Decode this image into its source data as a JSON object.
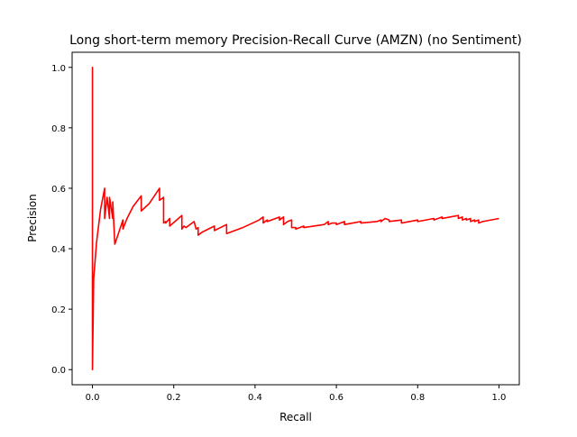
{
  "chart_data": {
    "type": "line",
    "title": "Long short-term memory Precision-Recall Curve (AMZN) (no Sentiment)",
    "xlabel": "Recall",
    "ylabel": "Precision",
    "xlim": [
      -0.05,
      1.05
    ],
    "ylim": [
      -0.05,
      1.05
    ],
    "xticks": [
      0.0,
      0.2,
      0.4,
      0.6,
      0.8,
      1.0
    ],
    "xtick_labels": [
      "0.0",
      "0.2",
      "0.4",
      "0.6",
      "0.8",
      "1.0"
    ],
    "yticks": [
      0.0,
      0.2,
      0.4,
      0.6,
      0.8,
      1.0
    ],
    "ytick_labels": [
      "0.0",
      "0.2",
      "0.4",
      "0.6",
      "0.8",
      "1.0"
    ],
    "grid": false,
    "legend": "none",
    "series": [
      {
        "color": "#ff0000",
        "x": [
          0.0,
          0.0,
          0.0,
          0.003,
          0.01,
          0.02,
          0.03,
          0.03,
          0.036,
          0.042,
          0.042,
          0.05,
          0.05,
          0.055,
          0.065,
          0.075,
          0.075,
          0.085,
          0.1,
          0.12,
          0.12,
          0.14,
          0.165,
          0.165,
          0.175,
          0.175,
          0.18,
          0.18,
          0.19,
          0.19,
          0.22,
          0.22,
          0.225,
          0.23,
          0.24,
          0.25,
          0.255,
          0.26,
          0.26,
          0.27,
          0.3,
          0.3,
          0.33,
          0.33,
          0.37,
          0.41,
          0.42,
          0.42,
          0.43,
          0.43,
          0.46,
          0.46,
          0.47,
          0.47,
          0.48,
          0.49,
          0.49,
          0.5,
          0.5,
          0.52,
          0.52,
          0.57,
          0.58,
          0.58,
          0.59,
          0.6,
          0.6,
          0.62,
          0.62,
          0.64,
          0.64,
          0.66,
          0.66,
          0.7,
          0.71,
          0.71,
          0.72,
          0.73,
          0.73,
          0.76,
          0.76,
          0.8,
          0.8,
          0.84,
          0.84,
          0.86,
          0.86,
          0.88,
          0.88,
          0.9,
          0.9,
          0.91,
          0.91,
          0.92,
          0.92,
          0.93,
          0.93,
          0.94,
          0.94,
          0.95,
          0.95,
          0.96,
          0.96,
          1.0
        ],
        "y": [
          0.0,
          1.0,
          0.0,
          0.3,
          0.42,
          0.53,
          0.6,
          0.5,
          0.57,
          0.5,
          0.57,
          0.5,
          0.555,
          0.415,
          0.455,
          0.495,
          0.465,
          0.5,
          0.54,
          0.575,
          0.525,
          0.55,
          0.6,
          0.56,
          0.57,
          0.485,
          0.49,
          0.485,
          0.5,
          0.475,
          0.51,
          0.465,
          0.475,
          0.47,
          0.48,
          0.49,
          0.465,
          0.47,
          0.445,
          0.455,
          0.475,
          0.46,
          0.48,
          0.45,
          0.47,
          0.495,
          0.505,
          0.485,
          0.495,
          0.49,
          0.505,
          0.495,
          0.505,
          0.48,
          0.49,
          0.495,
          0.47,
          0.47,
          0.465,
          0.475,
          0.47,
          0.48,
          0.49,
          0.48,
          0.485,
          0.485,
          0.48,
          0.49,
          0.48,
          0.485,
          0.485,
          0.49,
          0.485,
          0.49,
          0.495,
          0.49,
          0.5,
          0.495,
          0.49,
          0.495,
          0.485,
          0.495,
          0.49,
          0.5,
          0.495,
          0.505,
          0.5,
          0.505,
          0.505,
          0.51,
          0.5,
          0.505,
          0.495,
          0.5,
          0.495,
          0.5,
          0.49,
          0.495,
          0.49,
          0.495,
          0.485,
          0.49,
          0.49,
          0.5
        ]
      }
    ]
  }
}
